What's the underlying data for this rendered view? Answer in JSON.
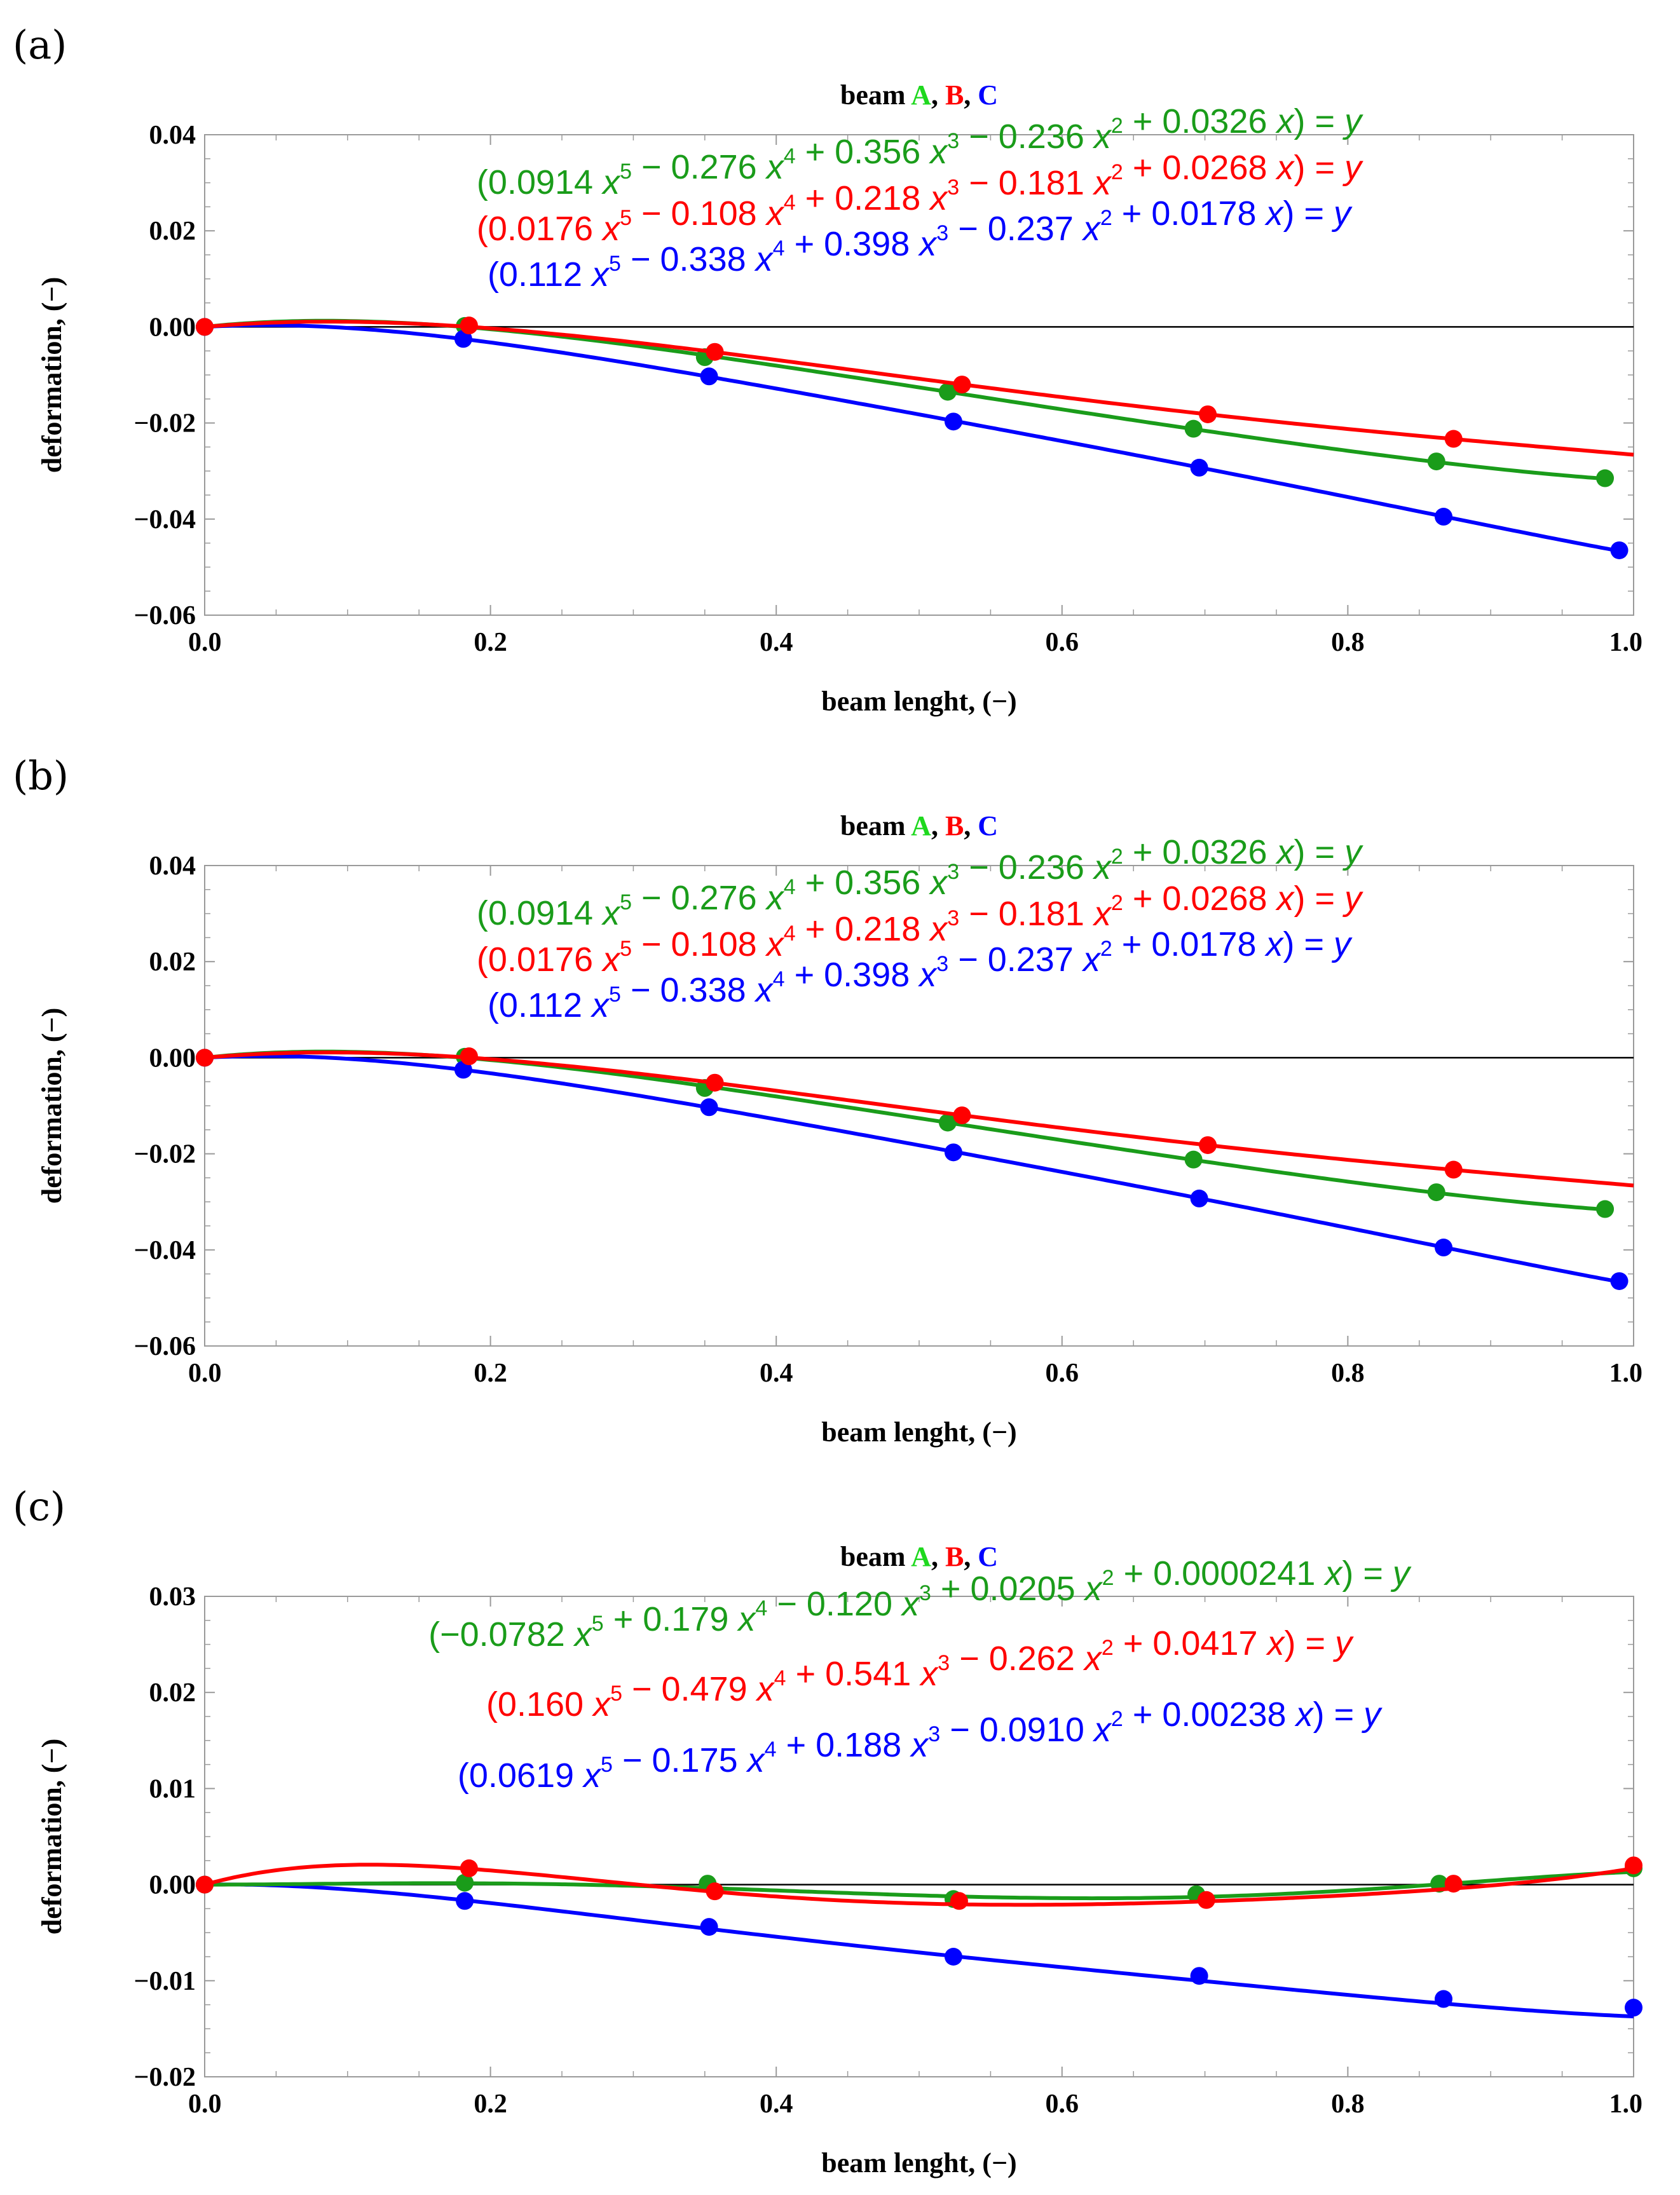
{
  "colors": {
    "A": "#1a9c1a",
    "B": "#ff0000",
    "C": "#0000ff",
    "title_A": "#1ed81e"
  },
  "chart_data": [
    {
      "panel_label": "(a)",
      "type": "line",
      "title": {
        "prefix": "beam",
        "A": "A",
        "sep1": ",",
        "B": "B",
        "sep2": ",",
        "C": "C"
      },
      "xlabel": "beam lenght, (−)",
      "ylabel": "deformation, (−)",
      "xlim": [
        0,
        1
      ],
      "ylim": [
        -0.06,
        0.04
      ],
      "xticks": [
        0,
        0.2,
        0.4,
        0.6,
        0.8,
        1.0
      ],
      "xtick_labels": [
        "0.0",
        "0.2",
        "0.4",
        "0.6",
        "0.8",
        "1.0"
      ],
      "yticks": [
        0.04,
        0.02,
        0.0,
        -0.02,
        -0.04,
        -0.06
      ],
      "ytick_labels": [
        "0.04",
        "0.02",
        "0.00",
        "−0.02",
        "−0.04",
        "−0.06"
      ],
      "series": [
        {
          "name": "A",
          "coefficients": [
            0.0914,
            -0.276,
            0.356,
            -0.236,
            0.0326
          ],
          "curve_end": 0.98,
          "points": [
            [
              0,
              0
            ],
            [
              0.182,
              0.0002
            ],
            [
              0.35,
              -0.0063
            ],
            [
              0.52,
              -0.0135
            ],
            [
              0.692,
              -0.0212
            ],
            [
              0.862,
              -0.028
            ],
            [
              0.98,
              -0.0315
            ]
          ],
          "equation": [
            "(0.0914 ",
            "x",
            "5",
            " − 0.276 ",
            "x",
            "4",
            " + 0.356 ",
            "x",
            "3",
            " − 0.236 ",
            "x",
            "2",
            " + 0.0326 ",
            "x",
            ") = ",
            "y"
          ]
        },
        {
          "name": "B",
          "coefficients": [
            0.0176,
            -0.108,
            0.218,
            -0.181,
            0.0268
          ],
          "curve_end": 1.0,
          "points": [
            [
              0,
              0
            ],
            [
              0.185,
              0.0003
            ],
            [
              0.357,
              -0.0052
            ],
            [
              0.53,
              -0.012
            ],
            [
              0.702,
              -0.0182
            ],
            [
              0.874,
              -0.0233
            ]
          ],
          "equation": [
            "(0.0176 ",
            "x",
            "5",
            " − 0.108 ",
            "x",
            "4",
            " + 0.218 ",
            "x",
            "3",
            " − 0.181 ",
            "x",
            "2",
            " + 0.0268 ",
            "x",
            ") = ",
            "y"
          ]
        },
        {
          "name": "C",
          "coefficients": [
            0.112,
            -0.338,
            0.398,
            -0.237,
            0.0178
          ],
          "curve_end": 0.99,
          "points": [
            [
              0,
              0
            ],
            [
              0.181,
              -0.0025
            ],
            [
              0.353,
              -0.0103
            ],
            [
              0.524,
              -0.0197
            ],
            [
              0.696,
              -0.0293
            ],
            [
              0.867,
              -0.0395
            ],
            [
              0.99,
              -0.0465
            ]
          ],
          "equation": [
            "(0.112 ",
            "x",
            "5",
            " − 0.338 ",
            "x",
            "4",
            " + 0.398 ",
            "x",
            "3",
            " − 0.237 ",
            "x",
            "2",
            " + 0.0178 ",
            "x",
            ") = ",
            "y"
          ]
        }
      ]
    },
    {
      "panel_label": "(b)",
      "type": "line",
      "title": {
        "prefix": "beam",
        "A": "A",
        "sep1": ",",
        "B": "B",
        "sep2": ",",
        "C": "C"
      },
      "xlabel": "beam lenght, (−)",
      "ylabel": "deformation, (−)",
      "xlim": [
        0,
        1
      ],
      "ylim": [
        -0.06,
        0.04
      ],
      "xticks": [
        0,
        0.2,
        0.4,
        0.6,
        0.8,
        1.0
      ],
      "xtick_labels": [
        "0.0",
        "0.2",
        "0.4",
        "0.6",
        "0.8",
        "1.0"
      ],
      "yticks": [
        0.04,
        0.02,
        0.0,
        -0.02,
        -0.04,
        -0.06
      ],
      "ytick_labels": [
        "0.04",
        "0.02",
        "0.00",
        "−0.02",
        "−0.04",
        "−0.06"
      ],
      "series": [
        {
          "name": "A",
          "coefficients": [
            0.0914,
            -0.276,
            0.356,
            -0.236,
            0.0326
          ],
          "curve_end": 0.98,
          "points": [
            [
              0,
              0
            ],
            [
              0.182,
              0.0002
            ],
            [
              0.35,
              -0.0063
            ],
            [
              0.52,
              -0.0135
            ],
            [
              0.692,
              -0.0212
            ],
            [
              0.862,
              -0.028
            ],
            [
              0.98,
              -0.0315
            ]
          ],
          "equation": [
            "(0.0914 ",
            "x",
            "5",
            " − 0.276 ",
            "x",
            "4",
            " + 0.356 ",
            "x",
            "3",
            " − 0.236 ",
            "x",
            "2",
            " + 0.0326 ",
            "x",
            ") = ",
            "y"
          ]
        },
        {
          "name": "B",
          "coefficients": [
            0.0176,
            -0.108,
            0.218,
            -0.181,
            0.0268
          ],
          "curve_end": 1.0,
          "points": [
            [
              0,
              0
            ],
            [
              0.185,
              0.0003
            ],
            [
              0.357,
              -0.0052
            ],
            [
              0.53,
              -0.012
            ],
            [
              0.702,
              -0.0182
            ],
            [
              0.874,
              -0.0233
            ]
          ],
          "equation": [
            "(0.0176 ",
            "x",
            "5",
            " − 0.108 ",
            "x",
            "4",
            " + 0.218 ",
            "x",
            "3",
            " − 0.181 ",
            "x",
            "2",
            " + 0.0268 ",
            "x",
            ") = ",
            "y"
          ]
        },
        {
          "name": "C",
          "coefficients": [
            0.112,
            -0.338,
            0.398,
            -0.237,
            0.0178
          ],
          "curve_end": 0.99,
          "points": [
            [
              0,
              0
            ],
            [
              0.181,
              -0.0025
            ],
            [
              0.353,
              -0.0103
            ],
            [
              0.524,
              -0.0197
            ],
            [
              0.696,
              -0.0293
            ],
            [
              0.867,
              -0.0395
            ],
            [
              0.99,
              -0.0465
            ]
          ],
          "equation": [
            "(0.112 ",
            "x",
            "5",
            " − 0.338 ",
            "x",
            "4",
            " + 0.398 ",
            "x",
            "3",
            " − 0.237 ",
            "x",
            "2",
            " + 0.0178 ",
            "x",
            ") = ",
            "y"
          ]
        }
      ]
    },
    {
      "panel_label": "(c)",
      "type": "line",
      "title": {
        "prefix": "beam",
        "A": "A",
        "sep1": ",",
        "B": "B",
        "sep2": ",",
        "C": "C"
      },
      "xlabel": "beam lenght, (−)",
      "ylabel": "deformation, (−)",
      "xlim": [
        0,
        1
      ],
      "ylim": [
        -0.02,
        0.03
      ],
      "xticks": [
        0,
        0.2,
        0.4,
        0.6,
        0.8,
        1.0
      ],
      "xtick_labels": [
        "0.0",
        "0.2",
        "0.4",
        "0.6",
        "0.8",
        "1.0"
      ],
      "yticks": [
        0.03,
        0.02,
        0.01,
        0.0,
        -0.01,
        -0.02
      ],
      "ytick_labels": [
        "0.03",
        "0.02",
        "0.01",
        "0.00",
        "−0.01",
        "−0.02"
      ],
      "series": [
        {
          "name": "A",
          "coefficients": [
            -0.0782,
            0.179,
            -0.12,
            0.0205,
            2.41e-05
          ],
          "curve_end": 1.0,
          "points": [
            [
              0,
              0
            ],
            [
              0.182,
              0.0002
            ],
            [
              0.352,
              0.0001
            ],
            [
              0.524,
              -0.0015
            ],
            [
              0.694,
              -0.001
            ],
            [
              0.864,
              0.0001
            ],
            [
              1.0,
              0.0017
            ]
          ],
          "equation": [
            "(−0.0782 ",
            "x",
            "5",
            " + 0.179 ",
            "x",
            "4",
            " − 0.120 ",
            "x",
            "3",
            " + 0.0205 ",
            "x",
            "2",
            " + 0.0000241 ",
            "x",
            ") = ",
            "y"
          ]
        },
        {
          "name": "B",
          "coefficients": [
            0.16,
            -0.479,
            0.541,
            -0.262,
            0.0417
          ],
          "curve_end": 1.0,
          "points": [
            [
              0,
              0
            ],
            [
              0.185,
              0.0017
            ],
            [
              0.357,
              -0.0007
            ],
            [
              0.528,
              -0.0017
            ],
            [
              0.701,
              -0.0016
            ],
            [
              0.874,
              0.0001
            ],
            [
              1.0,
              0.002
            ]
          ],
          "equation": [
            "(0.160 ",
            "x",
            "5",
            " − 0.479 ",
            "x",
            "4",
            " + 0.541 ",
            "x",
            "3",
            " − 0.262 ",
            "x",
            "2",
            " + 0.0417 ",
            "x",
            ") = ",
            "y"
          ]
        },
        {
          "name": "C",
          "coefficients": [
            0.0619,
            -0.175,
            0.188,
            -0.091,
            0.00238
          ],
          "curve_end": 1.0,
          "points": [
            [
              0,
              0
            ],
            [
              0.182,
              -0.0017
            ],
            [
              0.353,
              -0.0044
            ],
            [
              0.524,
              -0.0075
            ],
            [
              0.696,
              -0.0095
            ],
            [
              0.867,
              -0.0119
            ],
            [
              1.0,
              -0.0128
            ]
          ],
          "equation": [
            "(0.0619 ",
            "x",
            "5",
            " − 0.175 ",
            "x",
            "4",
            " + 0.188 ",
            "x",
            "3",
            " − 0.0910 ",
            "x",
            "2",
            " + 0.00238 ",
            "x",
            ") = ",
            "y"
          ]
        }
      ]
    }
  ]
}
